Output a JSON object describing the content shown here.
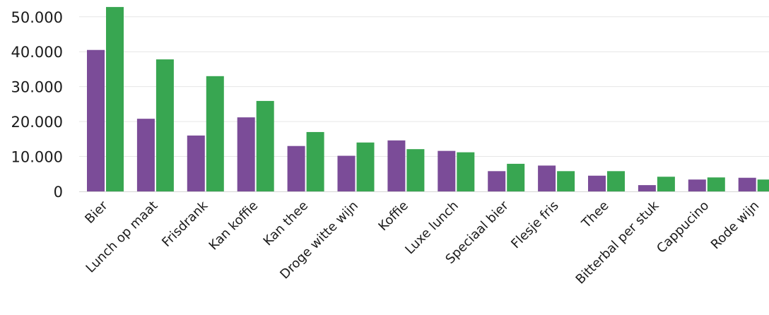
{
  "chart_data": {
    "type": "bar",
    "title": "",
    "xlabel": "",
    "ylabel": "",
    "ylim": [
      0,
      53000
    ],
    "yticks": [
      0,
      10000,
      20000,
      30000,
      40000,
      50000
    ],
    "ytick_labels": [
      "0",
      "10.000",
      "20.000",
      "30.000",
      "40.000",
      "50.000"
    ],
    "grid": true,
    "legend": "none",
    "categories": [
      "Bier",
      "Lunch op maat",
      "Frisdrank",
      "Kan koffie",
      "Kan thee",
      "Droge witte wijn",
      "Koffie",
      "Luxe lunch",
      "Speciaal bier",
      "Flesje fris",
      "Thee",
      "Bitterbal per stuk",
      "Cappucino",
      "Rode wijn"
    ],
    "series": [
      {
        "color": "#7b4c98",
        "values": [
          40500,
          20800,
          16000,
          21200,
          13000,
          10200,
          14600,
          11600,
          5800,
          7400,
          4500,
          1800,
          3400,
          3900
        ]
      },
      {
        "color": "#38a651",
        "values": [
          52800,
          37800,
          33000,
          25900,
          17000,
          14000,
          12100,
          11200,
          7900,
          5800,
          5800,
          4200,
          4000,
          3400
        ]
      }
    ]
  }
}
